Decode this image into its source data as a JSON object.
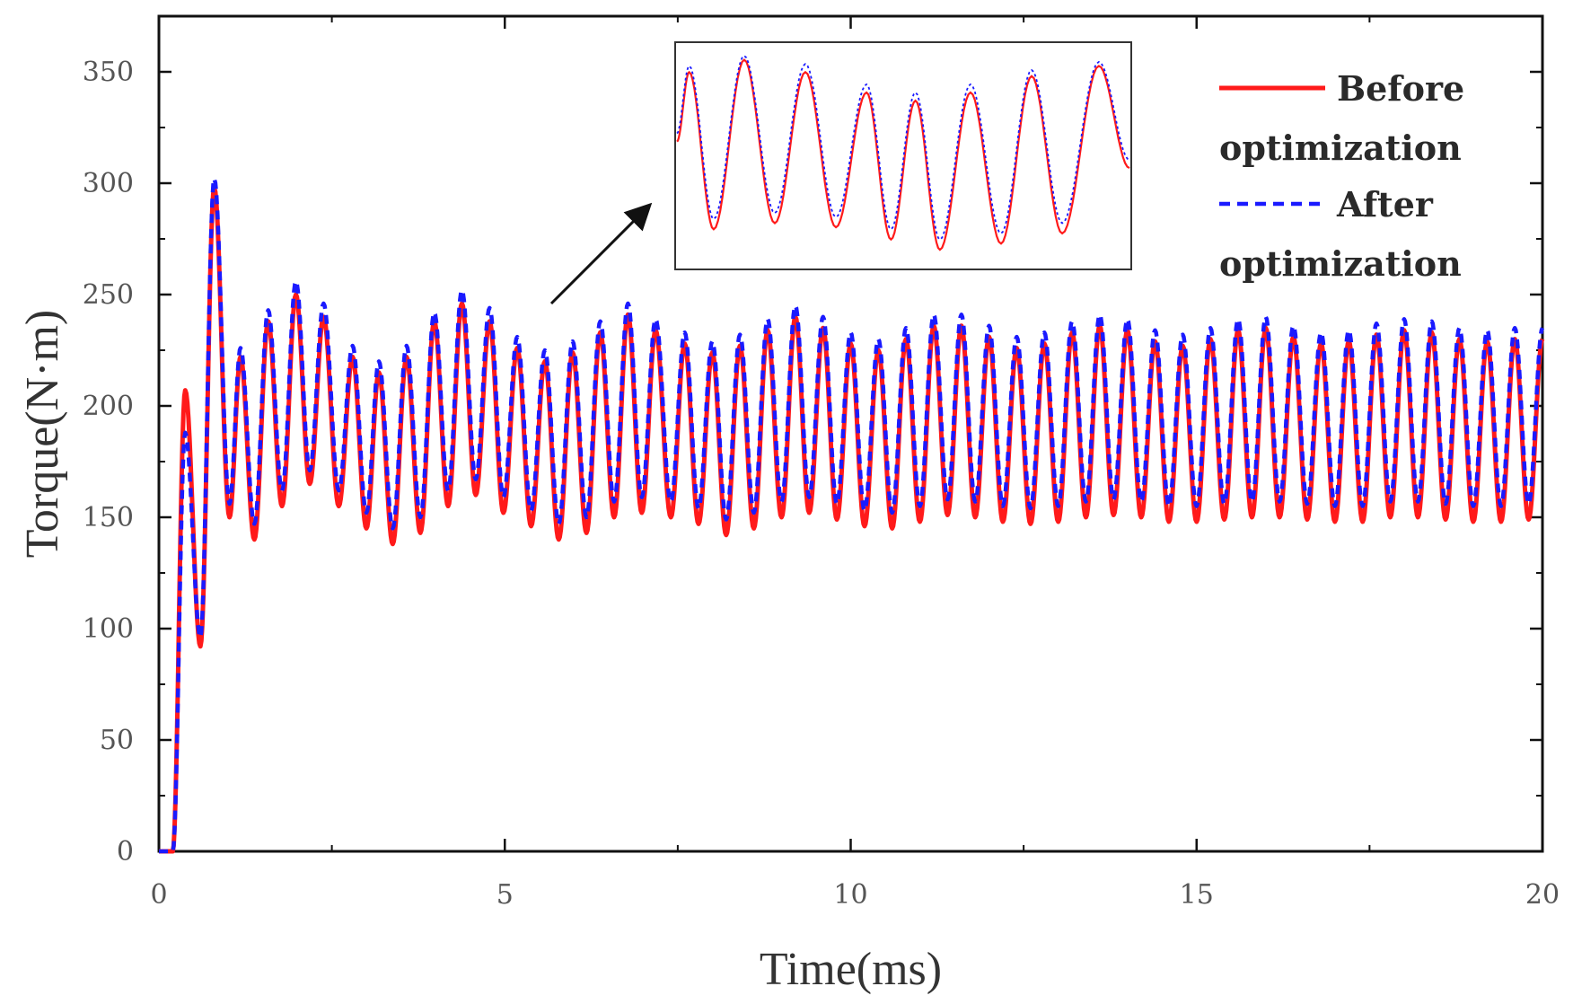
{
  "chart_data": {
    "type": "line",
    "title": "",
    "xlabel": "Time(ms)",
    "ylabel": "Torque(N·m)",
    "xlim": [
      0,
      20
    ],
    "ylim": [
      0,
      375
    ],
    "xticks": [
      0,
      5,
      10,
      15,
      20
    ],
    "yticks": [
      0,
      50,
      100,
      150,
      200,
      250,
      300,
      350
    ],
    "xtick_labels": [
      "0",
      "5",
      "10",
      "15",
      "20"
    ],
    "ytick_labels": [
      "0",
      "50",
      "100",
      "150",
      "200",
      "250",
      "300",
      "350"
    ],
    "grid": false,
    "legend_position": "top-right",
    "series": [
      {
        "name": "Before optimization",
        "legend_line1": "Before",
        "legend_line2": "optimization",
        "color": "#ff1a1a",
        "dash": "solid",
        "extrema": [
          [
            0.0,
            0
          ],
          [
            0.2,
            0
          ],
          [
            0.38,
            207
          ],
          [
            0.6,
            92
          ],
          [
            0.8,
            298
          ],
          [
            1.02,
            150
          ],
          [
            1.18,
            222
          ],
          [
            1.38,
            140
          ],
          [
            1.58,
            238
          ],
          [
            1.78,
            155
          ],
          [
            1.98,
            250
          ],
          [
            2.18,
            165
          ],
          [
            2.38,
            240
          ],
          [
            2.6,
            155
          ],
          [
            2.8,
            222
          ],
          [
            3.0,
            145
          ],
          [
            3.18,
            215
          ],
          [
            3.38,
            138
          ],
          [
            3.58,
            222
          ],
          [
            3.78,
            143
          ],
          [
            3.98,
            238
          ],
          [
            4.18,
            155
          ],
          [
            4.38,
            246
          ],
          [
            4.58,
            160
          ],
          [
            4.78,
            238
          ],
          [
            4.98,
            152
          ],
          [
            5.18,
            226
          ],
          [
            5.38,
            146
          ],
          [
            5.58,
            220
          ],
          [
            5.78,
            140
          ],
          [
            5.98,
            224
          ],
          [
            6.18,
            143
          ],
          [
            6.38,
            233
          ],
          [
            6.58,
            150
          ],
          [
            6.78,
            241
          ],
          [
            6.98,
            152
          ],
          [
            7.18,
            234
          ],
          [
            7.4,
            150
          ],
          [
            7.6,
            228
          ],
          [
            7.8,
            147
          ],
          [
            8.0,
            224
          ],
          [
            8.2,
            142
          ],
          [
            8.4,
            227
          ],
          [
            8.6,
            145
          ],
          [
            8.8,
            234
          ],
          [
            9.0,
            150
          ],
          [
            9.2,
            240
          ],
          [
            9.4,
            152
          ],
          [
            9.6,
            235
          ],
          [
            9.8,
            149
          ],
          [
            10.0,
            228
          ],
          [
            10.2,
            146
          ],
          [
            10.4,
            225
          ],
          [
            10.6,
            145
          ],
          [
            10.8,
            230
          ],
          [
            11.0,
            148
          ],
          [
            11.2,
            236
          ],
          [
            11.4,
            151
          ],
          [
            11.6,
            236
          ],
          [
            11.8,
            150
          ],
          [
            12.0,
            231
          ],
          [
            12.2,
            148
          ],
          [
            12.4,
            226
          ],
          [
            12.6,
            147
          ],
          [
            12.8,
            228
          ],
          [
            13.0,
            148
          ],
          [
            13.2,
            233
          ],
          [
            13.4,
            150
          ],
          [
            13.6,
            236
          ],
          [
            13.8,
            151
          ],
          [
            14.0,
            234
          ],
          [
            14.2,
            150
          ],
          [
            14.4,
            229
          ],
          [
            14.6,
            148
          ],
          [
            14.8,
            227
          ],
          [
            15.0,
            148
          ],
          [
            15.2,
            230
          ],
          [
            15.4,
            149
          ],
          [
            15.6,
            234
          ],
          [
            15.8,
            150
          ],
          [
            16.0,
            235
          ],
          [
            16.2,
            150
          ],
          [
            16.4,
            231
          ],
          [
            16.6,
            149
          ],
          [
            16.8,
            228
          ],
          [
            17.0,
            148
          ],
          [
            17.2,
            229
          ],
          [
            17.4,
            148
          ],
          [
            17.6,
            232
          ],
          [
            17.8,
            150
          ],
          [
            18.0,
            234
          ],
          [
            18.2,
            150
          ],
          [
            18.4,
            233
          ],
          [
            18.6,
            149
          ],
          [
            18.8,
            230
          ],
          [
            19.0,
            148
          ],
          [
            19.2,
            229
          ],
          [
            19.4,
            148
          ],
          [
            19.6,
            230
          ],
          [
            19.8,
            149
          ],
          [
            20.0,
            230
          ]
        ]
      },
      {
        "name": "After optimization",
        "legend_line1": "After",
        "legend_line2": "optimization",
        "color": "#1a1aff",
        "dash": "dashed",
        "extrema": [
          [
            0.0,
            0
          ],
          [
            0.2,
            0
          ],
          [
            0.38,
            188
          ],
          [
            0.6,
            96
          ],
          [
            0.8,
            302
          ],
          [
            1.02,
            156
          ],
          [
            1.18,
            226
          ],
          [
            1.38,
            147
          ],
          [
            1.58,
            243
          ],
          [
            1.78,
            162
          ],
          [
            1.98,
            256
          ],
          [
            2.18,
            171
          ],
          [
            2.38,
            246
          ],
          [
            2.6,
            162
          ],
          [
            2.8,
            227
          ],
          [
            3.0,
            152
          ],
          [
            3.18,
            220
          ],
          [
            3.38,
            145
          ],
          [
            3.58,
            227
          ],
          [
            3.78,
            150
          ],
          [
            3.98,
            242
          ],
          [
            4.18,
            162
          ],
          [
            4.38,
            252
          ],
          [
            4.58,
            167
          ],
          [
            4.78,
            244
          ],
          [
            4.98,
            159
          ],
          [
            5.18,
            231
          ],
          [
            5.38,
            153
          ],
          [
            5.58,
            225
          ],
          [
            5.78,
            147
          ],
          [
            5.98,
            229
          ],
          [
            6.18,
            150
          ],
          [
            6.38,
            238
          ],
          [
            6.58,
            157
          ],
          [
            6.78,
            246
          ],
          [
            6.98,
            159
          ],
          [
            7.18,
            239
          ],
          [
            7.4,
            157
          ],
          [
            7.6,
            233
          ],
          [
            7.8,
            154
          ],
          [
            8.0,
            229
          ],
          [
            8.2,
            149
          ],
          [
            8.4,
            232
          ],
          [
            8.6,
            152
          ],
          [
            8.8,
            239
          ],
          [
            9.0,
            157
          ],
          [
            9.2,
            245
          ],
          [
            9.4,
            159
          ],
          [
            9.6,
            240
          ],
          [
            9.8,
            156
          ],
          [
            10.0,
            233
          ],
          [
            10.2,
            153
          ],
          [
            10.4,
            230
          ],
          [
            10.6,
            152
          ],
          [
            10.8,
            235
          ],
          [
            11.0,
            155
          ],
          [
            11.2,
            241
          ],
          [
            11.4,
            158
          ],
          [
            11.6,
            241
          ],
          [
            11.8,
            157
          ],
          [
            12.0,
            236
          ],
          [
            12.2,
            155
          ],
          [
            12.4,
            231
          ],
          [
            12.6,
            154
          ],
          [
            12.8,
            233
          ],
          [
            13.0,
            155
          ],
          [
            13.2,
            238
          ],
          [
            13.4,
            157
          ],
          [
            13.6,
            241
          ],
          [
            13.8,
            158
          ],
          [
            14.0,
            239
          ],
          [
            14.2,
            157
          ],
          [
            14.4,
            234
          ],
          [
            14.6,
            155
          ],
          [
            14.8,
            232
          ],
          [
            15.0,
            155
          ],
          [
            15.2,
            235
          ],
          [
            15.4,
            156
          ],
          [
            15.6,
            239
          ],
          [
            15.8,
            157
          ],
          [
            16.0,
            240
          ],
          [
            16.2,
            157
          ],
          [
            16.4,
            236
          ],
          [
            16.6,
            156
          ],
          [
            16.8,
            233
          ],
          [
            17.0,
            155
          ],
          [
            17.2,
            234
          ],
          [
            17.4,
            155
          ],
          [
            17.6,
            237
          ],
          [
            17.8,
            157
          ],
          [
            18.0,
            239
          ],
          [
            18.2,
            157
          ],
          [
            18.4,
            238
          ],
          [
            18.6,
            156
          ],
          [
            18.8,
            235
          ],
          [
            19.0,
            155
          ],
          [
            19.2,
            234
          ],
          [
            19.4,
            155
          ],
          [
            19.6,
            235
          ],
          [
            19.8,
            156
          ],
          [
            20.0,
            235
          ]
        ]
      }
    ],
    "inset": {
      "description_source": "zoom of steady-state oscillation",
      "arrow_direction": "up-right",
      "before_extrema": [
        [
          0,
          318
        ],
        [
          0.2,
          352
        ],
        [
          0.6,
          275
        ],
        [
          1.1,
          358
        ],
        [
          1.6,
          278
        ],
        [
          2.1,
          352
        ],
        [
          2.6,
          276
        ],
        [
          3.1,
          342
        ],
        [
          3.5,
          270
        ],
        [
          3.9,
          338
        ],
        [
          4.3,
          265
        ],
        [
          4.8,
          342
        ],
        [
          5.3,
          268
        ],
        [
          5.8,
          350
        ],
        [
          6.3,
          273
        ],
        [
          6.9,
          355
        ],
        [
          7.4,
          305
        ]
      ],
      "after_extrema": [
        [
          0,
          322
        ],
        [
          0.2,
          355
        ],
        [
          0.6,
          280
        ],
        [
          1.1,
          360
        ],
        [
          1.6,
          283
        ],
        [
          2.1,
          356
        ],
        [
          2.6,
          281
        ],
        [
          3.1,
          346
        ],
        [
          3.5,
          275
        ],
        [
          3.9,
          342
        ],
        [
          4.3,
          270
        ],
        [
          4.8,
          346
        ],
        [
          5.3,
          273
        ],
        [
          5.8,
          353
        ],
        [
          6.3,
          278
        ],
        [
          6.9,
          357
        ],
        [
          7.4,
          309
        ]
      ],
      "ylim": [
        258,
        364
      ],
      "xlim": [
        0,
        7.4
      ]
    }
  }
}
